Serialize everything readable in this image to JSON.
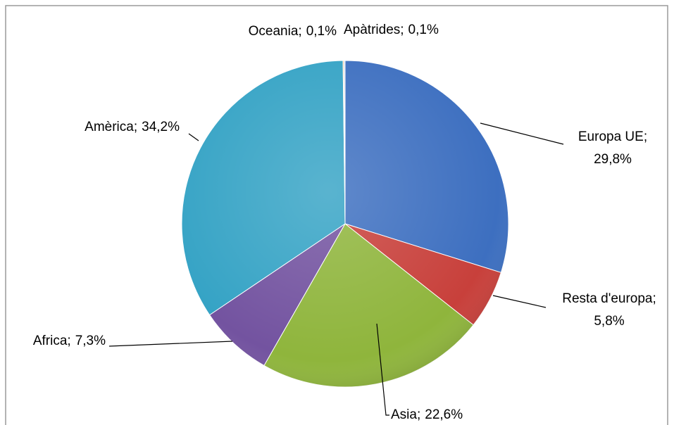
{
  "chart_data": {
    "type": "pie",
    "categories": [
      "Europa UE;",
      "Resta d'europa;",
      "Asia;",
      "Africa;",
      "Amèrica;",
      "Oceania;",
      "Apàtrides;"
    ],
    "values": [
      29.8,
      5.8,
      22.6,
      7.3,
      34.2,
      0.1,
      0.1
    ],
    "value_labels": [
      "29,8%",
      "5,8%",
      "22,6%",
      "7,3%",
      "34,2%",
      "0,1%",
      "0,1%"
    ],
    "colors": [
      "#3d6fc0",
      "#c8403b",
      "#8fb53c",
      "#7353a0",
      "#35a3c5",
      "#e8892f",
      "#8fb4e3"
    ]
  }
}
